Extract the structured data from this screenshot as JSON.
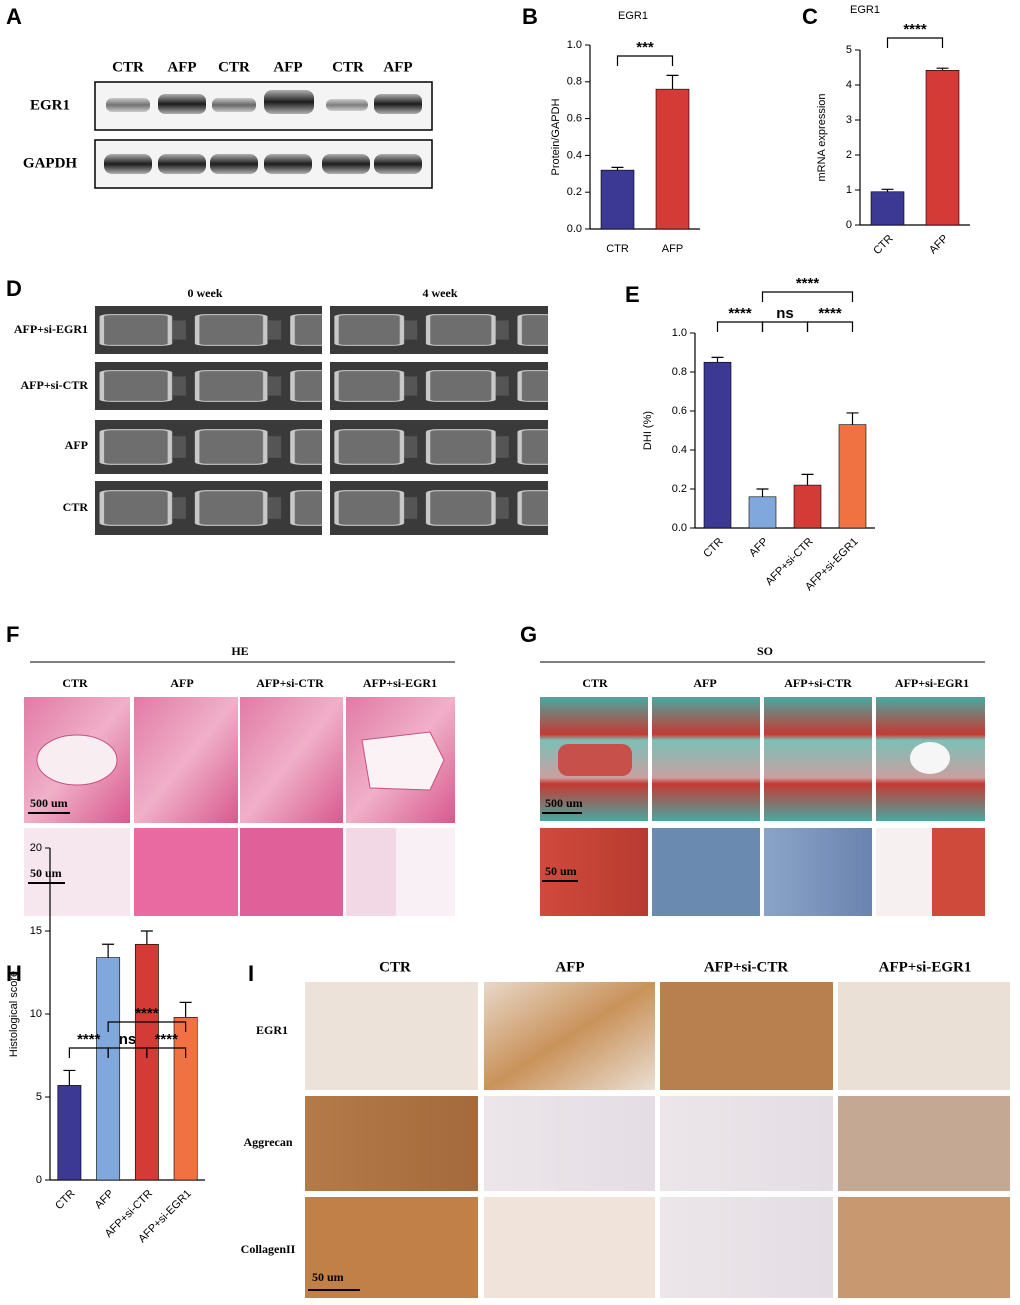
{
  "panels": {
    "A": {
      "letter": "A",
      "lanes": [
        "CTR",
        "AFP",
        "CTR",
        "AFP",
        "CTR",
        "AFP"
      ],
      "rows": [
        "EGR1",
        "GAPDH"
      ]
    },
    "D": {
      "letter": "D",
      "columns": [
        "0 week",
        "4 week"
      ],
      "rows": [
        "AFP+si-EGR1",
        "AFP+si-CTR",
        "AFP",
        "CTR"
      ]
    },
    "F": {
      "letter": "F",
      "stain": "HE",
      "columns": [
        "CTR",
        "AFP",
        "AFP+si-CTR",
        "AFP+si-EGR1"
      ],
      "scale_bars": [
        "500 um",
        "50 um"
      ]
    },
    "G": {
      "letter": "G",
      "stain": "SO",
      "columns": [
        "CTR",
        "AFP",
        "AFP+si-CTR",
        "AFP+si-EGR1"
      ],
      "scale_bars": [
        "500 um",
        "50 um"
      ]
    },
    "I": {
      "letter": "I",
      "columns": [
        "CTR",
        "AFP",
        "AFP+si-CTR",
        "AFP+si-EGR1"
      ],
      "rows": [
        "EGR1",
        "Aggrecan",
        "CollagenII"
      ],
      "scale_bar": "50 um"
    }
  },
  "chart_data": [
    {
      "type": "bar",
      "panel_label": "B",
      "title": "EGR1",
      "y_label": "Protein/GAPDH",
      "categories": [
        "CTR",
        "AFP"
      ],
      "values": [
        0.32,
        0.76
      ],
      "errors": [
        0.015,
        0.075
      ],
      "colors": [
        "#3b3993",
        "#d43a36"
      ],
      "ylim": [
        0,
        1
      ],
      "yticks": [
        {
          "value": 0,
          "label": "0.0"
        },
        0.2,
        0.4,
        0.6,
        0.8,
        {
          "value": 1,
          "label": "1.0"
        }
      ],
      "annotations": [
        "***"
      ]
    },
    {
      "type": "bar",
      "panel_label": "C",
      "title": "EGR1",
      "y_label": "mRNA expression",
      "categories": [
        "CTR",
        "AFP"
      ],
      "values": [
        0.95,
        4.42
      ],
      "errors": [
        0.07,
        0.06
      ],
      "colors": [
        "#3b3993",
        "#d43a36"
      ],
      "ylim": [
        0,
        5
      ],
      "yticks": [
        0,
        1,
        2,
        3,
        4,
        5
      ],
      "annotations": [
        "****"
      ]
    },
    {
      "type": "bar",
      "panel_label": "E",
      "y_label": "DHI (%)",
      "categories": [
        "CTR",
        "AFP",
        "AFP+si-CTR",
        "AFP+si-EGR1"
      ],
      "values": [
        0.85,
        0.16,
        0.22,
        0.53
      ],
      "errors": [
        0.025,
        0.04,
        0.055,
        0.06
      ],
      "colors": [
        "#3b3993",
        "#80a8dc",
        "#d43a36",
        "#f07242"
      ],
      "ylim": [
        0,
        1
      ],
      "yticks": [
        {
          "value": 0,
          "label": "0.0"
        },
        0.2,
        0.4,
        0.6,
        0.8,
        {
          "value": 1,
          "label": "1.0"
        }
      ],
      "annotations": [
        "****",
        "ns",
        "****",
        "****"
      ]
    },
    {
      "type": "bar",
      "panel_label": "H",
      "y_label": "Histological score",
      "categories": [
        "CTR",
        "AFP",
        "AFP+si-CTR",
        "AFP+si-EGR1"
      ],
      "values": [
        5.7,
        13.4,
        14.2,
        9.8
      ],
      "errors": [
        0.9,
        0.8,
        0.8,
        0.9
      ],
      "colors": [
        "#3b3993",
        "#80a8dc",
        "#d43a36",
        "#f07242"
      ],
      "ylim": [
        0,
        20
      ],
      "yticks": [
        0,
        5,
        10,
        15,
        20
      ],
      "annotations": [
        "****",
        "ns",
        "****",
        "****"
      ]
    }
  ]
}
